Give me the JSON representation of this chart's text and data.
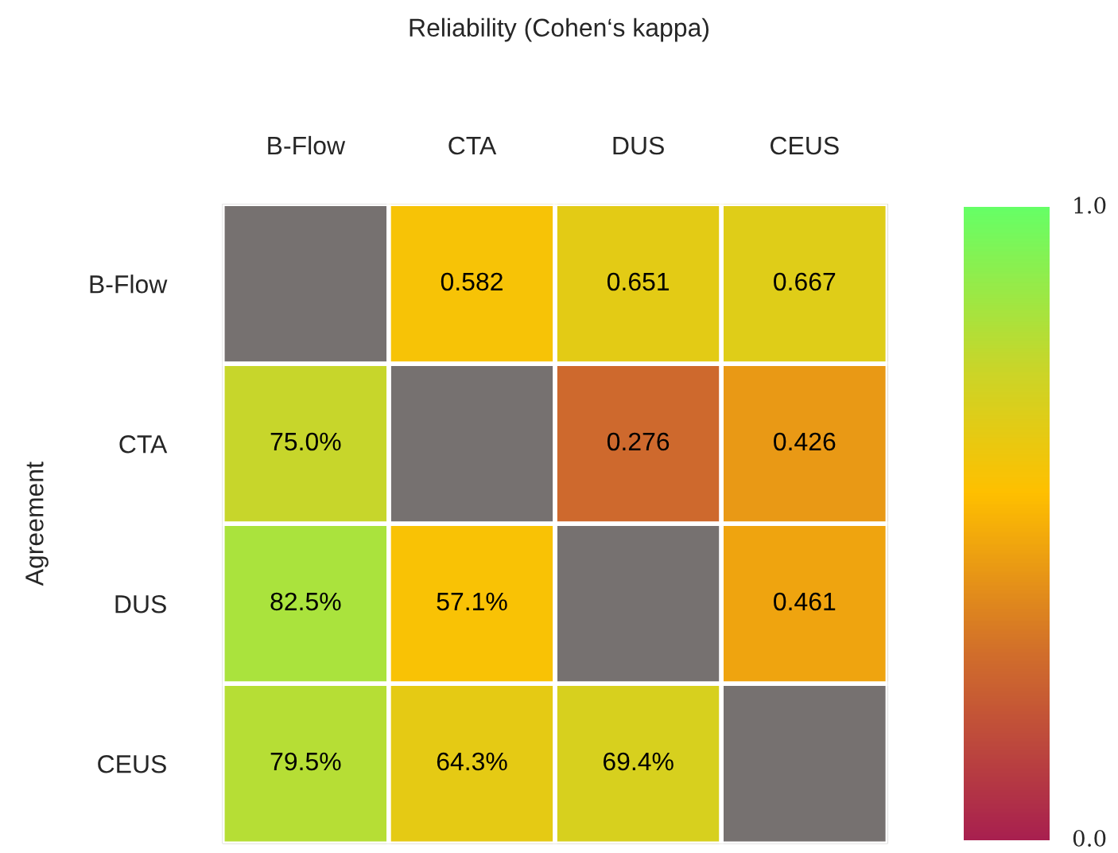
{
  "chart_data": {
    "type": "heatmap",
    "title": "Reliability (Cohen‘s kappa)",
    "ylabel": "Agreement",
    "categories": [
      "B-Flow",
      "CTA",
      "DUS",
      "CEUS"
    ],
    "y_categories": [
      "B-Flow",
      "CTA",
      "DUS",
      "CEUS"
    ],
    "cells": [
      [
        null,
        0.582,
        0.651,
        0.667
      ],
      [
        0.75,
        null,
        0.276,
        0.426
      ],
      [
        0.825,
        0.571,
        null,
        0.461
      ],
      [
        0.795,
        0.643,
        0.694,
        null
      ]
    ],
    "cell_labels": [
      [
        null,
        "0.582",
        "0.651",
        "0.667"
      ],
      [
        "75.0%",
        null,
        "0.276",
        "0.426"
      ],
      [
        "82.5%",
        "57.1%",
        null,
        "0.461"
      ],
      [
        "79.5%",
        "64.3%",
        "69.4%",
        null
      ]
    ],
    "clim": [
      0,
      1
    ],
    "cticks": [
      {
        "value": 0,
        "label": "0.0"
      },
      {
        "value": 1,
        "label": "1.0"
      }
    ]
  }
}
